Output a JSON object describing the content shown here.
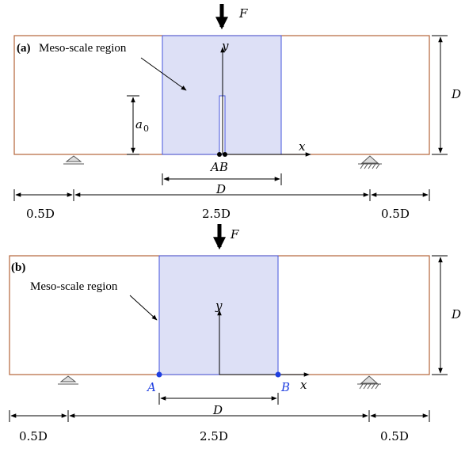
{
  "panel_a": {
    "tag": "(a)",
    "region_label": "Meso-scale region",
    "force": "F",
    "height_label": "D",
    "notch_label": "a",
    "notch_sub": "0",
    "axis_y": "y",
    "axis_x": "x",
    "points": "AB",
    "center_width": "D",
    "dims": {
      "left": "0.5D",
      "middle": "2.5D",
      "right": "0.5D"
    }
  },
  "panel_b": {
    "tag": "(b)",
    "region_label": "Meso-scale region",
    "force": "F",
    "height_label": "D",
    "axis_y": "y",
    "axis_x": "x",
    "point_a": "A",
    "point_b": "B",
    "center_width": "D",
    "dims": {
      "left": "0.5D",
      "middle": "2.5D",
      "right": "0.5D"
    }
  },
  "colors": {
    "beam_outline": "#b5643a",
    "meso_fill": "#dde0f6",
    "meso_edge": "#4455dd",
    "point_blue": "#1f3fe0",
    "ink": "#000000"
  }
}
